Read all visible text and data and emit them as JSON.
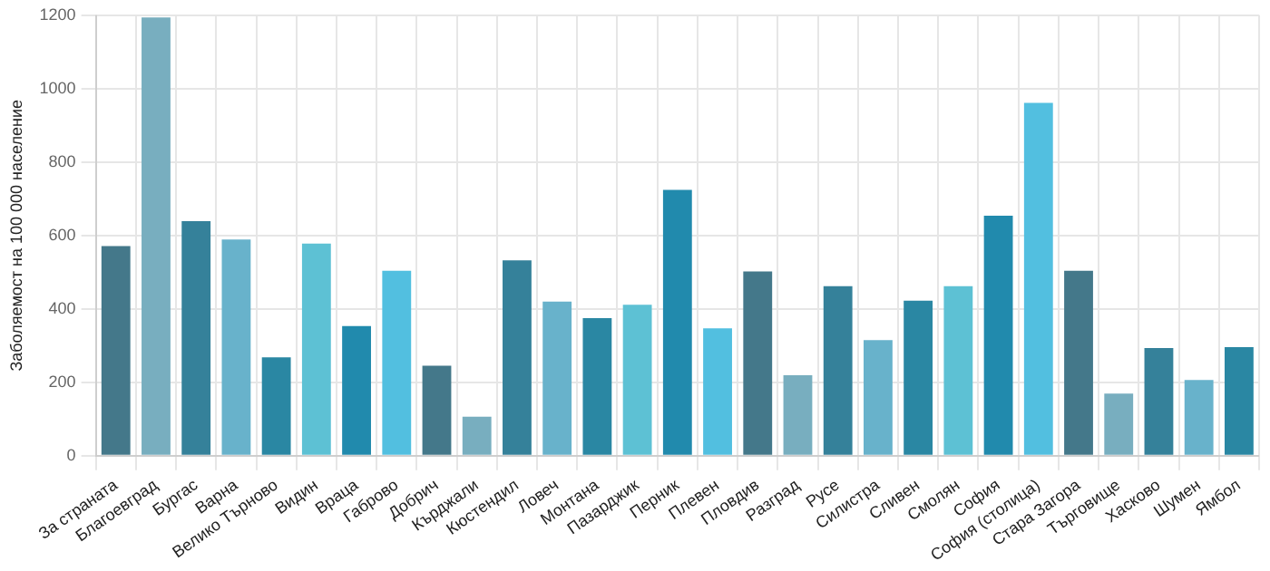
{
  "chart_data": {
    "type": "bar",
    "ylabel": "Заболяемост на 100 000 население",
    "categories": [
      "За страната",
      "Благоевград",
      "Бургас",
      "Варна",
      "Велико Търново",
      "Видин",
      "Враца",
      "Габрово",
      "Добрич",
      "Кърджали",
      "Кюстендил",
      "Ловеч",
      "Монтана",
      "Пазарджик",
      "Перник",
      "Плевен",
      "Пловдив",
      "Разград",
      "Русе",
      "Силистра",
      "Сливен",
      "Смолян",
      "София",
      "София (столица)",
      "Стара Загора",
      "Търговище",
      "Хасково",
      "Шумен",
      "Ямбол"
    ],
    "values": [
      571,
      1194,
      639,
      589,
      268,
      578,
      353,
      504,
      245,
      106,
      532,
      420,
      375,
      411,
      724,
      347,
      502,
      219,
      462,
      315,
      422,
      462,
      654,
      961,
      504,
      169,
      293,
      206,
      296
    ],
    "colors": [
      "#44788a",
      "#78aebf",
      "#35819a",
      "#68b2cb",
      "#2a87a3",
      "#5dc1d4",
      "#218aad",
      "#52bfe0",
      "#44788a",
      "#78aebf",
      "#35819a",
      "#68b2cb",
      "#2a87a3",
      "#5dc1d4",
      "#218aad",
      "#52bfe0",
      "#44788a",
      "#78aebf",
      "#35819a",
      "#68b2cb",
      "#2a87a3",
      "#5dc1d4",
      "#218aad",
      "#52bfe0",
      "#44788a",
      "#78aebf",
      "#35819a",
      "#68b2cb",
      "#2a87a3"
    ],
    "ylim": [
      0,
      1200
    ],
    "yticks": [
      0,
      200,
      400,
      600,
      800,
      1000,
      1200
    ],
    "grid": true,
    "legend": false
  }
}
